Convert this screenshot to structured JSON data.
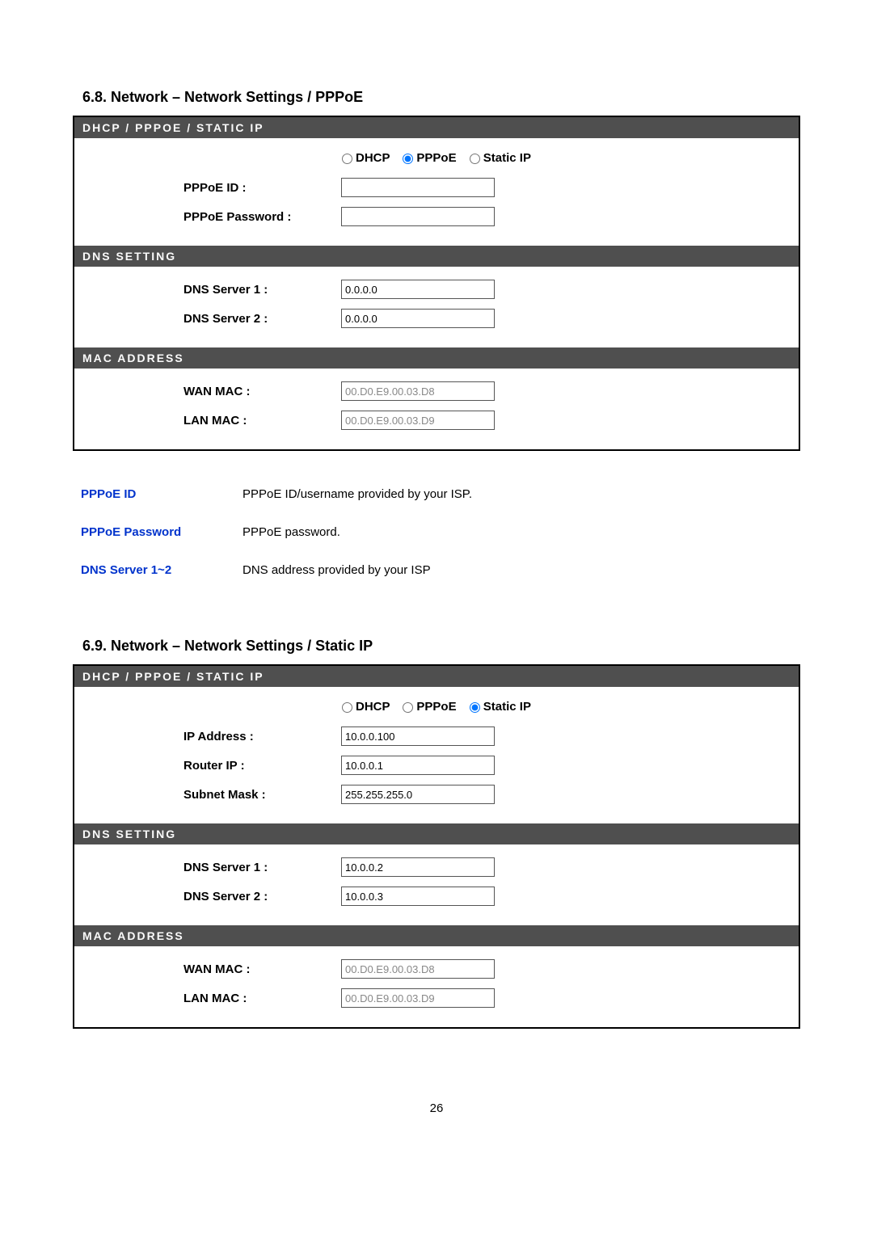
{
  "colors": {
    "section_bg": "#4f4f4f",
    "section_fg": "#fafafa",
    "link": "#0033cc",
    "border": "#000000",
    "input_border": "#555555",
    "readonly_text": "#888888",
    "page_bg": "#ffffff"
  },
  "section68": {
    "heading": "6.8.  Network – Network Settings / PPPoE",
    "dhcp_header": "DHCP / PPPOE / STATIC IP",
    "radio": {
      "dhcp": "DHCP",
      "pppoe": "PPPoE",
      "static": "Static IP",
      "selected": "pppoe"
    },
    "pppoe_id_label": "PPPoE ID :",
    "pppoe_pw_label": "PPPoE Password :",
    "dns_header": "DNS SETTING",
    "dns1_label": "DNS Server 1 :",
    "dns1_value": "0.0.0.0",
    "dns2_label": "DNS Server 2 :",
    "dns2_value": "0.0.0.0",
    "mac_header": "MAC ADDRESS",
    "wan_label": "WAN MAC :",
    "wan_value": "00.D0.E9.00.03.D8",
    "lan_label": "LAN MAC :",
    "lan_value": "00.D0.E9.00.03.D9"
  },
  "desc": {
    "pppoe_id_term": "PPPoE ID",
    "pppoe_id_def": "PPPoE ID/username provided by your ISP.",
    "pppoe_pw_term": "PPPoE Password",
    "pppoe_pw_def": "PPPoE password.",
    "dns_term": "DNS Server 1~2",
    "dns_def": "DNS address provided by your ISP"
  },
  "section69": {
    "heading": "6.9.  Network – Network Settings / Static IP",
    "dhcp_header": "DHCP / PPPOE / STATIC IP",
    "radio": {
      "dhcp": "DHCP",
      "pppoe": "PPPoE",
      "static": "Static IP",
      "selected": "static"
    },
    "ip_label": "IP Address :",
    "ip_value": "10.0.0.100",
    "router_label": "Router IP :",
    "router_value": "10.0.0.1",
    "subnet_label": "Subnet Mask :",
    "subnet_value": "255.255.255.0",
    "dns_header": "DNS SETTING",
    "dns1_label": "DNS Server 1 :",
    "dns1_value": "10.0.0.2",
    "dns2_label": "DNS Server 2 :",
    "dns2_value": "10.0.0.3",
    "mac_header": "MAC ADDRESS",
    "wan_label": "WAN MAC :",
    "wan_value": "00.D0.E9.00.03.D8",
    "lan_label": "LAN MAC :",
    "lan_value": "00.D0.E9.00.03.D9"
  },
  "page_number": "26"
}
